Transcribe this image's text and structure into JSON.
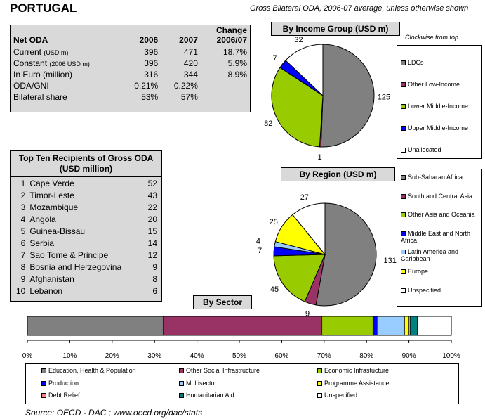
{
  "header": {
    "country": "PORTUGAL",
    "subtitle": "Gross Bilateral ODA, 2006-07 average, unless otherwise shown"
  },
  "net_oda": {
    "col_label": "Net ODA",
    "col_2006": "2006",
    "col_2007": "2007",
    "col_change_1": "Change",
    "col_change_2": "2006/07",
    "rows": [
      {
        "label": "Current",
        "unit": "(USD m)",
        "v2006": "396",
        "v2007": "471",
        "change": "18.7%"
      },
      {
        "label": "Constant",
        "unit": "(2006 USD m)",
        "v2006": "396",
        "v2007": "420",
        "change": "5.9%"
      },
      {
        "label": "In Euro (million)",
        "unit": "",
        "v2006": "316",
        "v2007": "344",
        "change": "8.9%"
      },
      {
        "label": "ODA/GNI",
        "unit": "",
        "v2006": "0.21%",
        "v2007": "0.22%",
        "change": ""
      },
      {
        "label": "Bilateral share",
        "unit": "",
        "v2006": "53%",
        "v2007": "57%",
        "change": ""
      }
    ]
  },
  "top_ten": {
    "title_1": "Top Ten Recipients of Gross ODA",
    "title_2": "(USD million)",
    "rows": [
      {
        "rank": "1",
        "name": "Cape Verde",
        "value": "52"
      },
      {
        "rank": "2",
        "name": "Timor-Leste",
        "value": "43"
      },
      {
        "rank": "3",
        "name": "Mozambique",
        "value": "22"
      },
      {
        "rank": "4",
        "name": "Angola",
        "value": "20"
      },
      {
        "rank": "5",
        "name": "Guinea-Bissau",
        "value": "15"
      },
      {
        "rank": "6",
        "name": "Serbia",
        "value": "14"
      },
      {
        "rank": "7",
        "name": "Sao Tome & Principe",
        "value": "12"
      },
      {
        "rank": "8",
        "name": "Bosnia and Herzegovina",
        "value": "9"
      },
      {
        "rank": "9",
        "name": "Afghanistan",
        "value": "8"
      },
      {
        "rank": "10",
        "name": "Lebanon",
        "value": "6"
      }
    ]
  },
  "clockwise_note": "Clockwise from top",
  "source": "Source:  OECD - DAC ; www.oecd.org/dac/stats",
  "chart_data": [
    {
      "type": "pie",
      "title": "By Income Group (USD m)",
      "slices": [
        {
          "name": "LDCs",
          "value": 125,
          "color": "#808080"
        },
        {
          "name": "Other Low-Income",
          "value": 1,
          "color": "#993366"
        },
        {
          "name": "Lower Middle-Income",
          "value": 82,
          "color": "#99cc00"
        },
        {
          "name": "Upper Middle-Income",
          "value": 7,
          "color": "#0000ff"
        },
        {
          "name": "Unallocated",
          "value": 32,
          "color": "#ffffff"
        }
      ],
      "legend_placement": "right"
    },
    {
      "type": "pie",
      "title": "By Region (USD m)",
      "slices": [
        {
          "name": "Sub-Saharan Africa",
          "value": 131,
          "color": "#808080"
        },
        {
          "name": "South and Central Asia",
          "value": 9,
          "color": "#993366"
        },
        {
          "name": "Other Asia and Oceania",
          "value": 45,
          "color": "#99cc00"
        },
        {
          "name": "Middle East and North Africa",
          "value": 7,
          "color": "#0000ff"
        },
        {
          "name": "Latin America and Caribbean",
          "value": 4,
          "color": "#99ccff"
        },
        {
          "name": "Europe",
          "value": 25,
          "color": "#ffff00"
        },
        {
          "name": "Unspecified",
          "value": 27,
          "color": "#ffffff"
        }
      ],
      "legend_placement": "right"
    },
    {
      "type": "bar",
      "orientation": "horizontal-stacked-100",
      "title": "By Sector",
      "xlim": [
        0,
        100
      ],
      "x_ticks": [
        "0%",
        "10%",
        "20%",
        "30%",
        "40%",
        "50%",
        "60%",
        "70%",
        "80%",
        "90%",
        "100%"
      ],
      "series": [
        {
          "name": "Education, Health & Population",
          "value": 32,
          "color": "#808080"
        },
        {
          "name": "Other Social Infrastructure",
          "value": 37.5,
          "color": "#993366"
        },
        {
          "name": "Economic Infrastucture",
          "value": 12,
          "color": "#99cc00"
        },
        {
          "name": "Production",
          "value": 1,
          "color": "#0000ff"
        },
        {
          "name": "Multisector",
          "value": 6.5,
          "color": "#99ccff"
        },
        {
          "name": "Programme Assistance",
          "value": 1,
          "color": "#ffff00"
        },
        {
          "name": "Debt Relief",
          "value": 0.3,
          "color": "#ff8080"
        },
        {
          "name": "Humanitarian Aid",
          "value": 1.7,
          "color": "#008080"
        },
        {
          "name": "Unspecified",
          "value": 8,
          "color": "#ffffff"
        }
      ],
      "legend_placement": "bottom"
    }
  ]
}
